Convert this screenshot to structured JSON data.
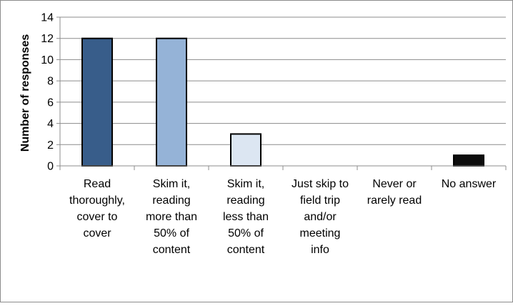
{
  "chart_data": {
    "type": "bar",
    "title": "",
    "xlabel": "",
    "ylabel": "Number of responses",
    "ylim": [
      0,
      14
    ],
    "yticks": [
      0,
      2,
      4,
      6,
      8,
      10,
      12,
      14
    ],
    "grid": true,
    "legend": "none",
    "categories": [
      "Read thoroughly, cover to cover",
      "Skim it, reading more than 50% of content",
      "Skim it, reading less than 50% of content",
      "Just skip to field trip and/or meeting info",
      "Never or rarely read",
      "No answer"
    ],
    "category_lines": [
      [
        "Read",
        "thoroughly,",
        "cover to",
        "cover"
      ],
      [
        "Skim it,",
        "reading",
        "more than",
        "50% of",
        "content"
      ],
      [
        "Skim it,",
        "reading",
        "less than",
        "50% of",
        "content"
      ],
      [
        "Just skip to",
        "field trip",
        "and/or",
        "meeting",
        "info"
      ],
      [
        "Never or",
        "rarely read"
      ],
      [
        "No answer"
      ]
    ],
    "values": [
      12,
      12,
      3,
      0,
      0,
      1
    ],
    "colors": [
      "#385d8a",
      "#95b3d7",
      "#dce6f2",
      "#c6d9f1",
      "#4f81bd",
      "#0d0d0d"
    ]
  }
}
